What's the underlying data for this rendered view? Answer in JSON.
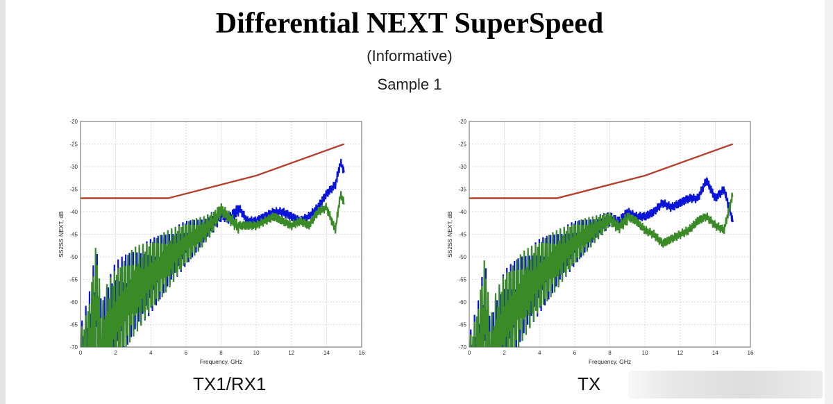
{
  "title": "Differential NEXT SuperSpeed",
  "subtitle": "(Informative)",
  "sample": "Sample 1",
  "colors": {
    "limit": "#b3402e",
    "blue": "#0a14d8",
    "green": "#3a8a28",
    "grid": "#cfcfcf"
  },
  "chart_data": [
    {
      "type": "line",
      "caption": "TX1/RX1",
      "xlabel": "Frequency, GHz",
      "ylabel": "SS2SS NEXT, dB",
      "xlim": [
        0,
        16
      ],
      "ylim": [
        -70,
        -20
      ],
      "xticks": [
        0,
        2,
        4,
        6,
        8,
        10,
        12,
        14,
        16
      ],
      "yticks": [
        -20,
        -25,
        -30,
        -35,
        -40,
        -45,
        -50,
        -55,
        -60,
        -65,
        -70
      ],
      "grid": true,
      "series": [
        {
          "color": "#b3402e",
          "x": [
            0,
            5,
            10,
            15
          ],
          "y": [
            -37,
            -37,
            -32,
            -25
          ]
        },
        {
          "color": "#0a14d8",
          "x": [
            0,
            0.5,
            0.9,
            1.2,
            1.5,
            2,
            3,
            4,
            5,
            6,
            7,
            7.5,
            8,
            8.5,
            9,
            9.5,
            10,
            10.5,
            11,
            11.5,
            12,
            12.5,
            13,
            13.5,
            14,
            14.5,
            14.8,
            15
          ],
          "y": [
            -65,
            -58,
            -47,
            -60,
            -55,
            -51,
            -48,
            -46,
            -44,
            -42,
            -41,
            -40,
            -39,
            -40,
            -38,
            -41,
            -41,
            -40,
            -39,
            -39,
            -40,
            -41,
            -40,
            -38,
            -35,
            -33,
            -28,
            -30
          ]
        },
        {
          "color": "#3a8a28",
          "x": [
            0,
            0.5,
            0.9,
            1.2,
            1.5,
            2,
            3,
            4,
            5,
            6,
            7,
            7.5,
            8,
            8.5,
            9,
            9.5,
            10,
            10.5,
            11,
            11.5,
            12,
            12.5,
            13,
            13.5,
            14,
            14.5,
            14.8,
            15
          ],
          "y": [
            -66,
            -59,
            -46,
            -61,
            -56,
            -52,
            -48,
            -46,
            -44,
            -42,
            -41,
            -40,
            -38,
            -40,
            -42,
            -42,
            -42,
            -41,
            -40,
            -41,
            -42,
            -41,
            -42,
            -39,
            -38,
            -43,
            -35,
            -37
          ]
        }
      ]
    },
    {
      "type": "line",
      "caption": "TX",
      "xlabel": "Frequency, GHz",
      "ylabel": "SS2SS NEXT, dB",
      "xlim": [
        0,
        16
      ],
      "ylim": [
        -70,
        -20
      ],
      "xticks": [
        0,
        2,
        4,
        6,
        8,
        10,
        12,
        14,
        16
      ],
      "yticks": [
        -20,
        -25,
        -30,
        -35,
        -40,
        -45,
        -50,
        -55,
        -60,
        -65,
        -70
      ],
      "grid": true,
      "series": [
        {
          "color": "#b3402e",
          "x": [
            0,
            5,
            10,
            15
          ],
          "y": [
            -37,
            -37,
            -32,
            -25
          ]
        },
        {
          "color": "#0a14d8",
          "x": [
            0,
            0.5,
            0.9,
            1.2,
            1.5,
            2,
            3,
            4,
            5,
            6,
            7,
            8,
            8.5,
            9,
            9.5,
            10,
            10.5,
            11,
            11.5,
            12,
            12.5,
            13,
            13.5,
            14,
            14.5,
            15
          ],
          "y": [
            -67,
            -60,
            -50,
            -64,
            -58,
            -53,
            -49,
            -46,
            -44,
            -42,
            -41,
            -40,
            -41,
            -39,
            -40,
            -40,
            -39,
            -37,
            -38,
            -37,
            -36,
            -36,
            -32,
            -36,
            -34,
            -41
          ]
        },
        {
          "color": "#3a8a28",
          "x": [
            0,
            0.5,
            0.9,
            1.2,
            1.5,
            2,
            3,
            4,
            5,
            6,
            7,
            8,
            8.5,
            9,
            9.5,
            10,
            10.5,
            11,
            11.5,
            12,
            12.5,
            13,
            13.5,
            14,
            14.5,
            15
          ],
          "y": [
            -68,
            -60,
            -49,
            -64,
            -58,
            -53,
            -49,
            -46,
            -44,
            -42,
            -41,
            -40,
            -42,
            -40,
            -41,
            -43,
            -44,
            -46,
            -45,
            -44,
            -43,
            -41,
            -40,
            -42,
            -43,
            -35
          ]
        }
      ]
    }
  ]
}
